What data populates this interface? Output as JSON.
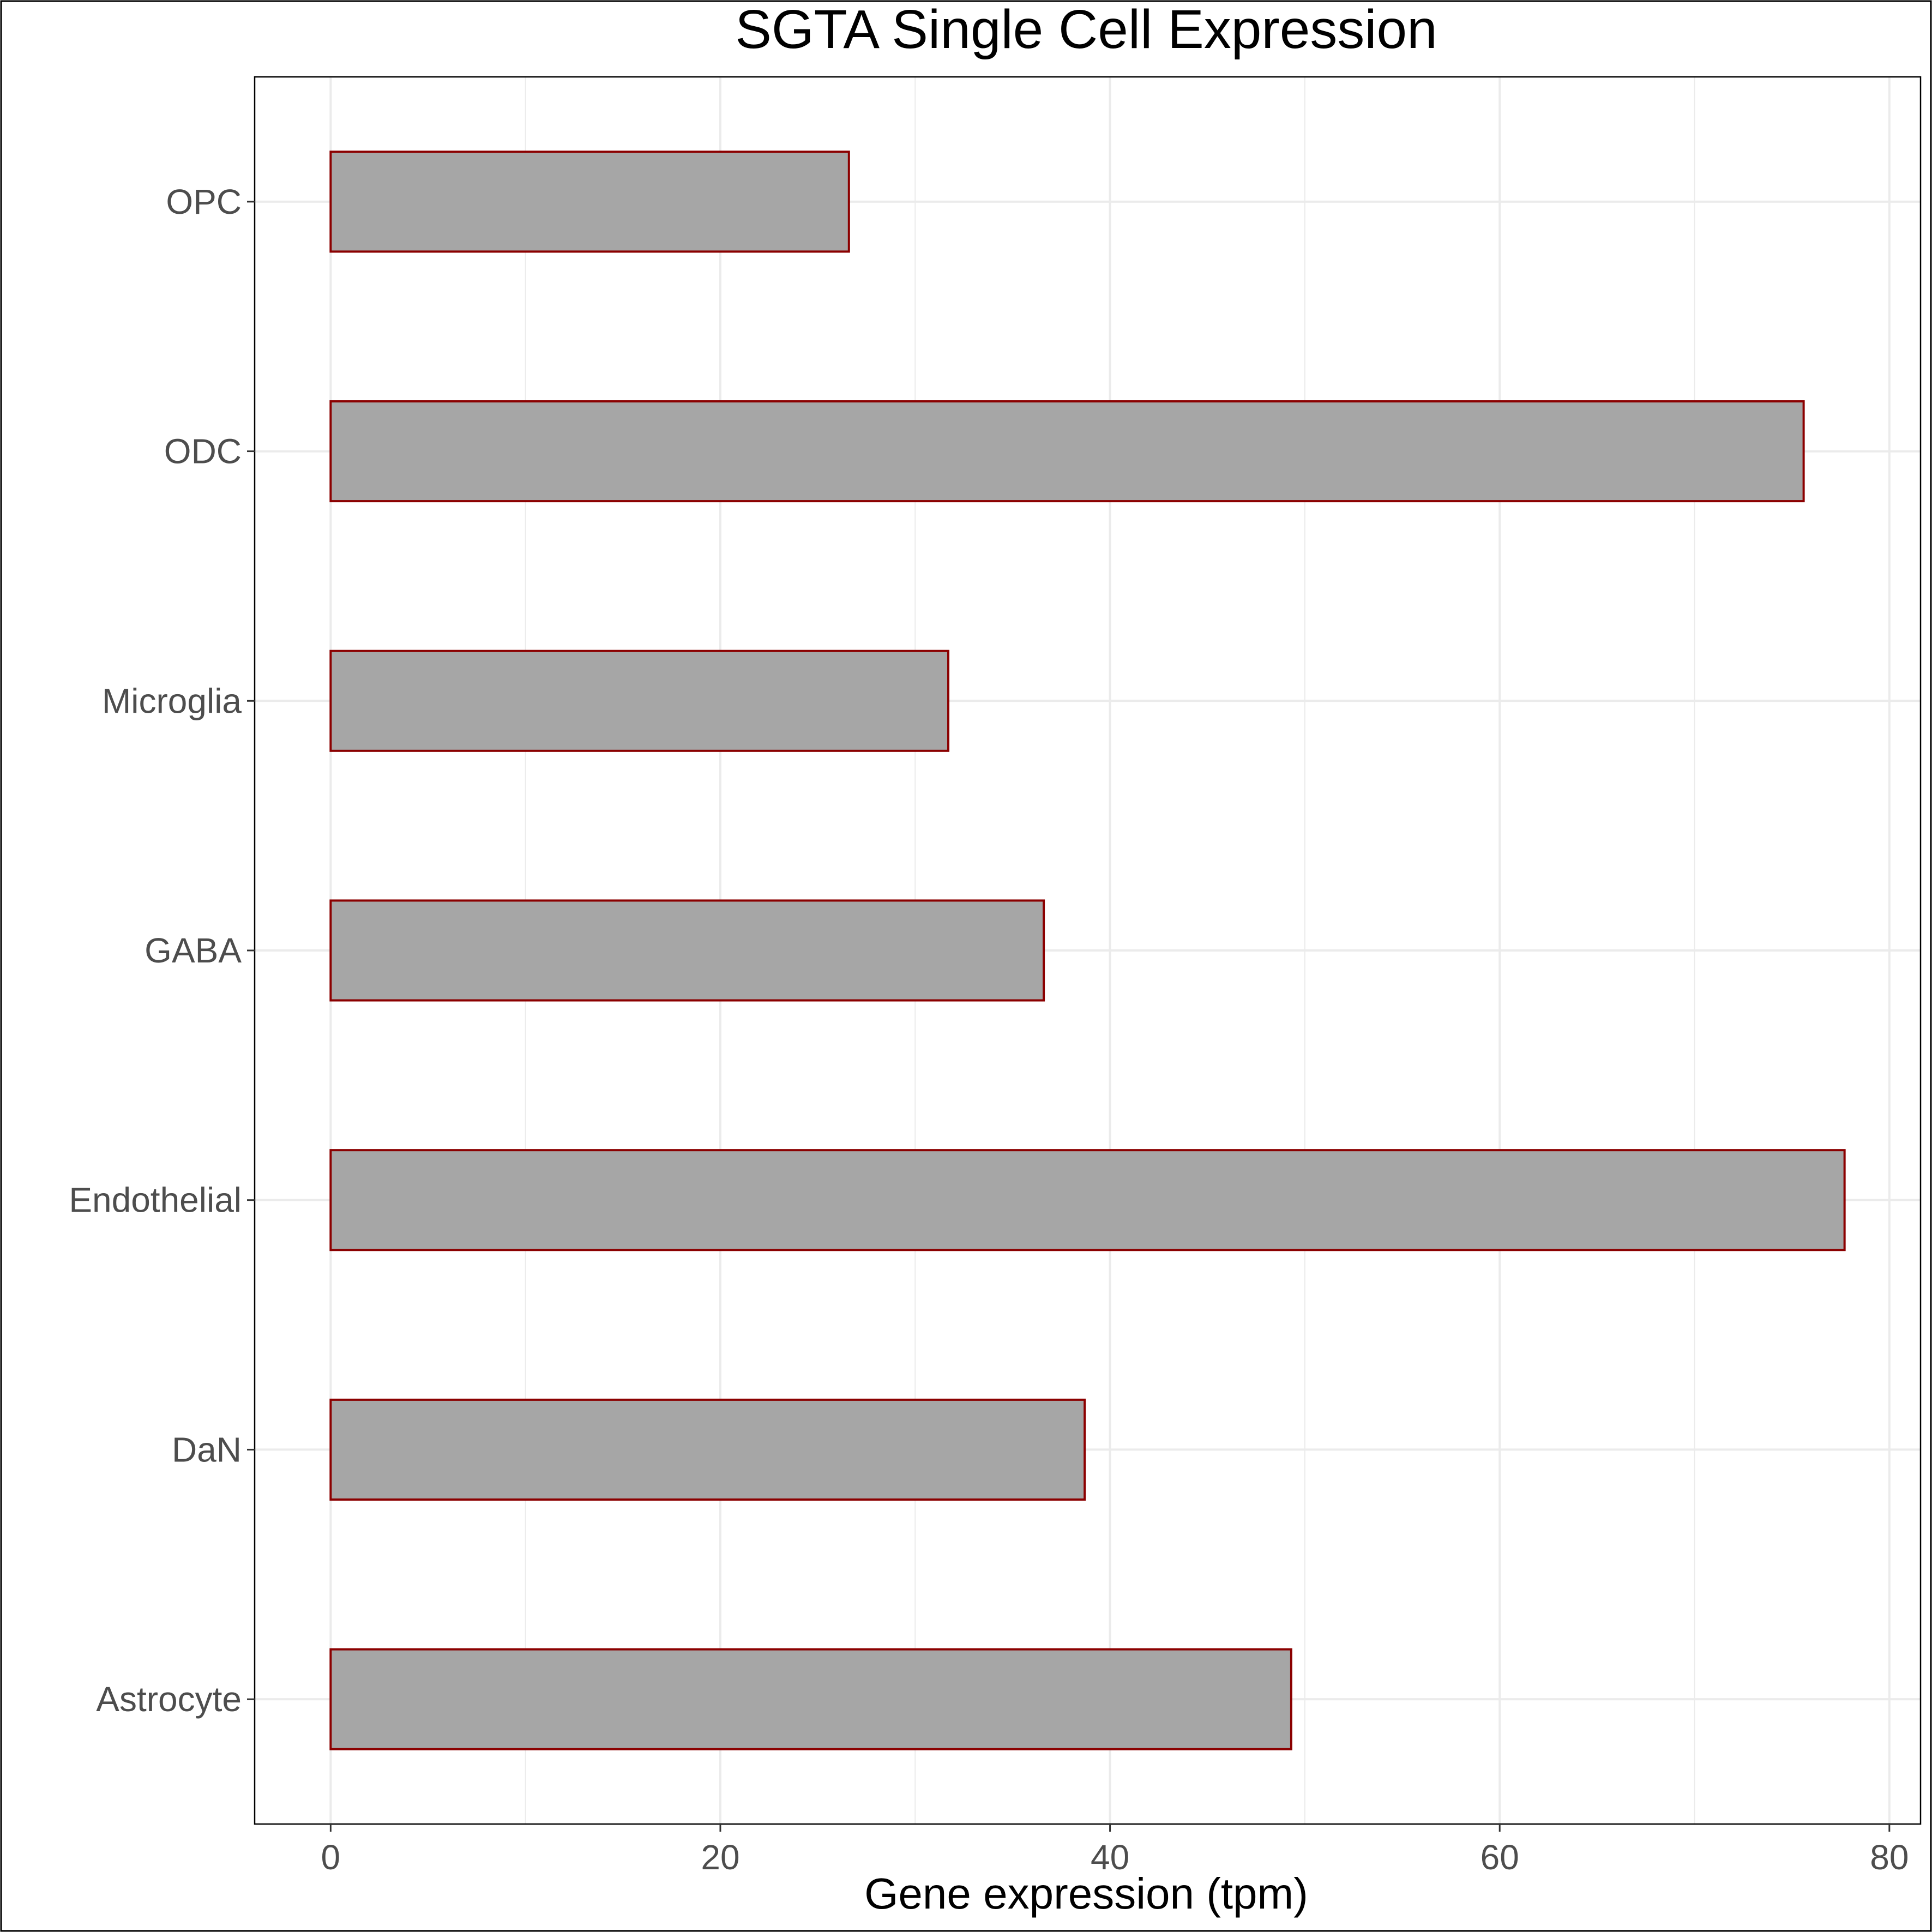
{
  "chart_data": {
    "type": "bar",
    "orientation": "horizontal",
    "title": "SGTA Single Cell Expression",
    "xlabel": "Gene expression (tpm)",
    "ylabel": "",
    "categories": [
      "Astrocyte",
      "DaN",
      "Endothelial",
      "GABA",
      "Microglia",
      "ODC",
      "OPC"
    ],
    "values": [
      49.3,
      38.7,
      77.7,
      36.6,
      31.7,
      75.6,
      26.6
    ],
    "xlim": [
      -3.9,
      81.6
    ],
    "xticks": [
      0,
      20,
      40,
      60,
      80
    ],
    "xtick_labels": [
      "0",
      "20",
      "40",
      "60",
      "80"
    ],
    "grid": true,
    "legend": "none",
    "colors": {
      "bar_fill": "#a6a6a6",
      "bar_border": "#8b0000",
      "grid": "#ebebeb",
      "panel_border": "#000000",
      "tick_text": "#4d4d4d",
      "title_text": "#000000"
    }
  }
}
